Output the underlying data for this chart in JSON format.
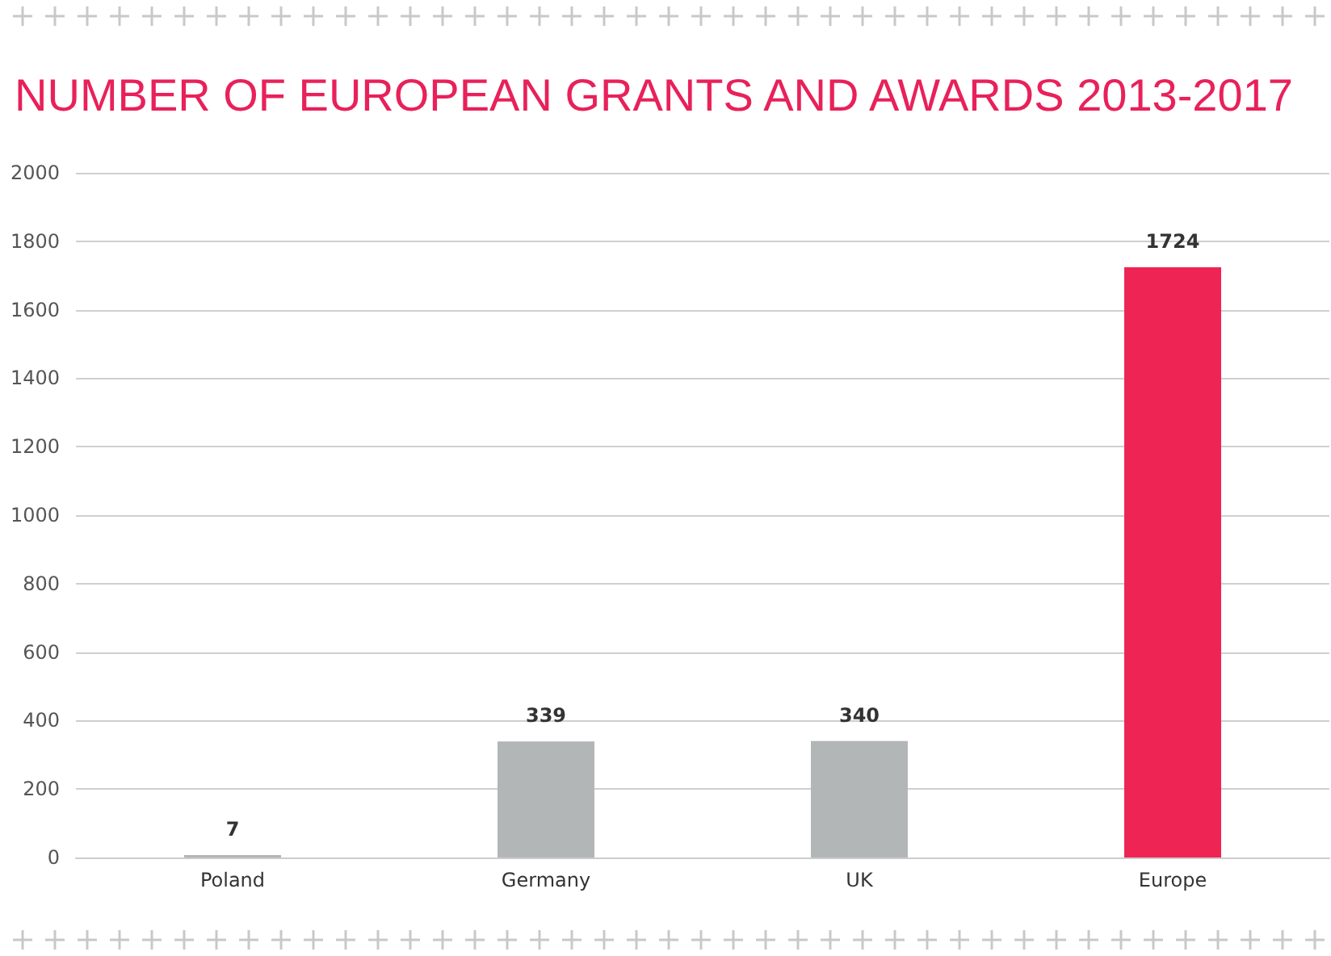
{
  "chart_data": {
    "type": "bar",
    "title": "NUMBER OF EUROPEAN GRANTS AND AWARDS 2013-2017",
    "categories": [
      "Poland",
      "Germany",
      "UK",
      "Europe"
    ],
    "values": [
      7,
      339,
      340,
      1724
    ],
    "colors": [
      "#b3b6b7",
      "#b3b6b7",
      "#b3b6b7",
      "#ee2455"
    ],
    "ylim": [
      0,
      2000
    ],
    "yticks": [
      0,
      200,
      400,
      600,
      800,
      1000,
      1200,
      1400,
      1600,
      1800,
      2000
    ],
    "grid": "y",
    "data_labels": true
  }
}
